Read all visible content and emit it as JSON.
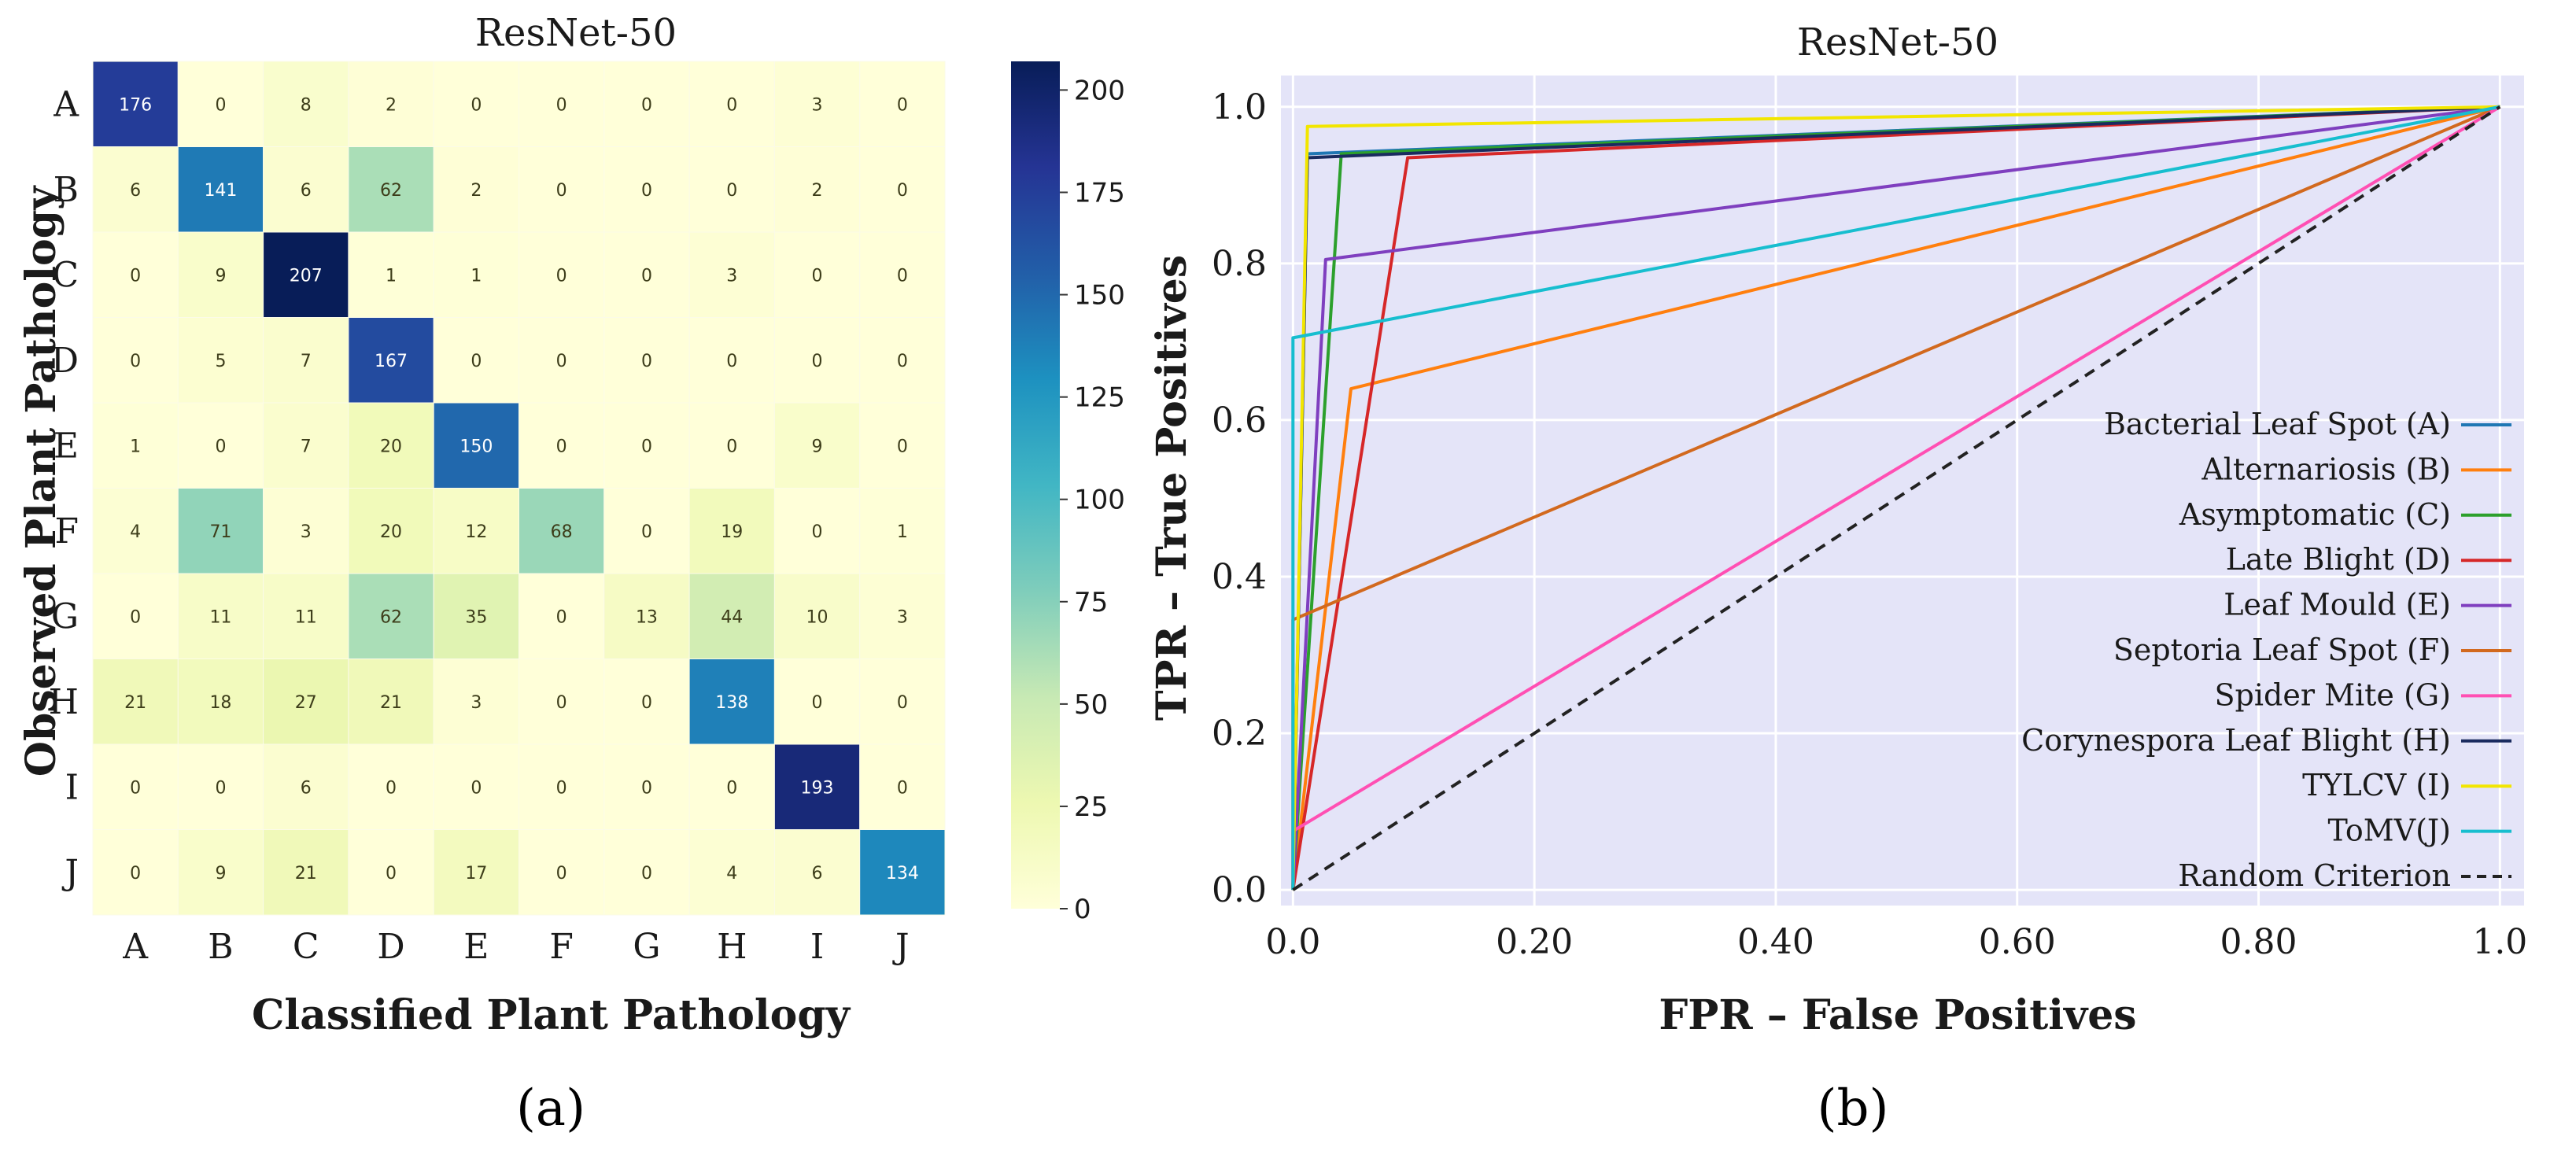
{
  "chart_data": [
    {
      "type": "heatmap",
      "panel_label": "(a)",
      "title": "ResNet-50",
      "xlabel": "Classified Plant Pathology",
      "ylabel": "Observed Plant Pathology",
      "x_categories": [
        "A",
        "B",
        "C",
        "D",
        "E",
        "F",
        "G",
        "H",
        "I",
        "J"
      ],
      "y_categories": [
        "A",
        "B",
        "C",
        "D",
        "E",
        "F",
        "G",
        "H",
        "I",
        "J"
      ],
      "matrix": [
        [
          176,
          0,
          8,
          2,
          0,
          0,
          0,
          0,
          3,
          0
        ],
        [
          6,
          141,
          6,
          62,
          2,
          0,
          0,
          0,
          2,
          0
        ],
        [
          0,
          9,
          207,
          1,
          1,
          0,
          0,
          3,
          0,
          0
        ],
        [
          0,
          5,
          7,
          167,
          0,
          0,
          0,
          0,
          0,
          0
        ],
        [
          1,
          0,
          7,
          20,
          150,
          0,
          0,
          0,
          9,
          0
        ],
        [
          4,
          71,
          3,
          20,
          12,
          68,
          0,
          19,
          0,
          1
        ],
        [
          0,
          11,
          11,
          62,
          35,
          0,
          13,
          44,
          10,
          3
        ],
        [
          21,
          18,
          27,
          21,
          3,
          0,
          0,
          138,
          0,
          0
        ],
        [
          0,
          0,
          6,
          0,
          0,
          0,
          0,
          0,
          193,
          0
        ],
        [
          0,
          9,
          21,
          0,
          17,
          0,
          0,
          4,
          6,
          134
        ]
      ],
      "colorbar": {
        "range": [
          0,
          207
        ],
        "ticks": [
          "200",
          "175",
          "150",
          "125",
          "100",
          "75",
          "50",
          "25",
          "0"
        ],
        "tick_values": [
          200,
          175,
          150,
          125,
          100,
          75,
          50,
          25,
          0
        ],
        "colormap": "YlGnBu"
      }
    },
    {
      "type": "line",
      "panel_label": "(b)",
      "title": "ResNet-50",
      "xlabel": "FPR – False Positives",
      "ylabel": "TPR – True Positives",
      "xlim": [
        -0.01,
        1.02
      ],
      "ylim": [
        -0.02,
        1.04
      ],
      "xticks": [
        0.0,
        0.2,
        0.4,
        0.6,
        0.8,
        1.0
      ],
      "xtick_labels": [
        "0.0",
        "0.20",
        "0.40",
        "0.60",
        "0.80",
        "1.0"
      ],
      "yticks": [
        0.0,
        0.2,
        0.4,
        0.6,
        0.8,
        1.0
      ],
      "ytick_labels": [
        "0.0",
        "0.2",
        "0.4",
        "0.6",
        "0.8",
        "1.0"
      ],
      "grid": true,
      "background": "#e4e4f8",
      "legend_position": "right",
      "series": [
        {
          "name": "Bacterial Leaf Spot (A)",
          "color": "#1f77b4",
          "x": [
            0,
            0.012,
            1
          ],
          "y": [
            0,
            0.94,
            1
          ]
        },
        {
          "name": "Alternariosis (B)",
          "color": "#ff7f0e",
          "x": [
            0,
            0.048,
            1
          ],
          "y": [
            0,
            0.64,
            1
          ]
        },
        {
          "name": "Asymptomatic (C)",
          "color": "#2ca02c",
          "x": [
            0,
            0.04,
            1
          ],
          "y": [
            0,
            0.94,
            1
          ]
        },
        {
          "name": "Late Blight (D)",
          "color": "#d62728",
          "x": [
            0,
            0.095,
            1
          ],
          "y": [
            0,
            0.935,
            1
          ]
        },
        {
          "name": "Leaf Mould (E)",
          "color": "#7f3fbf",
          "x": [
            0,
            0.027,
            1
          ],
          "y": [
            0,
            0.805,
            1
          ]
        },
        {
          "name": "Septoria Leaf Spot (F)",
          "color": "#d2691e",
          "x": [
            0,
            0.0,
            1
          ],
          "y": [
            0,
            0.345,
            1
          ]
        },
        {
          "name": "Spider Mite (G)",
          "color": "#ff4fb3",
          "x": [
            0,
            0.0,
            1
          ],
          "y": [
            0,
            0.075,
            1
          ]
        },
        {
          "name": "Corynespora Leaf Blight (H)",
          "color": "#1a2b5f",
          "x": [
            0,
            0.012,
            1
          ],
          "y": [
            0,
            0.935,
            1
          ]
        },
        {
          "name": "TYLCV (I)",
          "color": "#f2e600",
          "x": [
            0,
            0.012,
            1
          ],
          "y": [
            0,
            0.975,
            1
          ]
        },
        {
          "name": "ToMV(J)",
          "color": "#17becf",
          "x": [
            0,
            0.0,
            1
          ],
          "y": [
            0,
            0.705,
            1
          ]
        },
        {
          "name": "Random Criterion",
          "color": "#222222",
          "dashed": true,
          "x": [
            0,
            1
          ],
          "y": [
            0,
            1
          ]
        }
      ]
    }
  ]
}
